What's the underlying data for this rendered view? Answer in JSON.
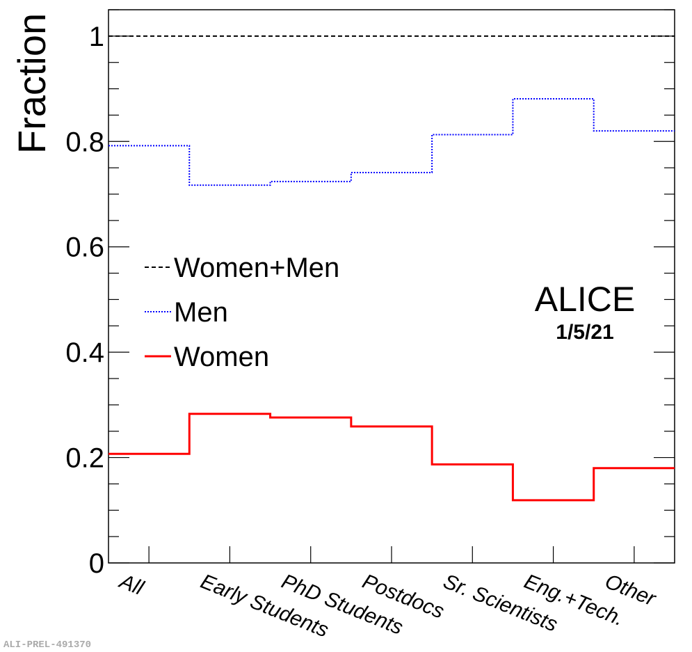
{
  "chart_data": {
    "type": "line",
    "step": true,
    "ylabel": "Fraction",
    "ylim": [
      0,
      1.05
    ],
    "yticks": [
      "0",
      "0.2",
      "0.4",
      "0.6",
      "0.8",
      "1"
    ],
    "categories": [
      "All",
      "Early Students",
      "PhD Students",
      "Postdocs",
      "Sr. Scientists",
      "Eng.+Tech.",
      "Other"
    ],
    "series": [
      {
        "name": "Women+Men",
        "color": "#000000",
        "style": "dashed",
        "values": [
          1,
          1,
          1,
          1,
          1,
          1,
          1
        ]
      },
      {
        "name": "Men",
        "color": "#0000ff",
        "style": "dotted",
        "values": [
          0.792,
          0.717,
          0.724,
          0.741,
          0.813,
          0.881,
          0.82
        ]
      },
      {
        "name": "Women",
        "color": "#ff0000",
        "style": "solid",
        "values": [
          0.207,
          0.283,
          0.276,
          0.259,
          0.187,
          0.119,
          0.18
        ]
      }
    ],
    "legend_position": "middle-left",
    "grid": false,
    "annotation": {
      "title": "ALICE",
      "date": "1/5/21"
    }
  },
  "footer": {
    "label": "ALI-PREL-491370"
  }
}
